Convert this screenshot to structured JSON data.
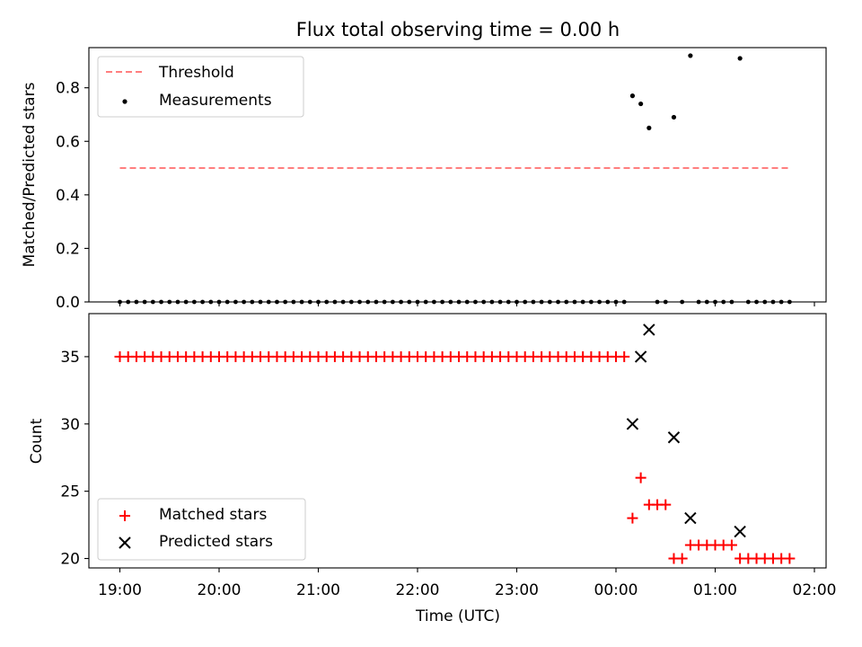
{
  "chart_data": [
    {
      "type": "scatter",
      "title": "Flux total observing time = 0.00 h",
      "ylabel": "Matched/Predicted stars",
      "xlabel": "",
      "ylim": [
        0,
        0.95
      ],
      "yticks": [
        0.0,
        0.2,
        0.4,
        0.6,
        0.8
      ],
      "ytick_labels": [
        "0.0",
        "0.2",
        "0.4",
        "0.6",
        "0.8"
      ],
      "grid": false,
      "legend_position": "top-left",
      "threshold": {
        "name": "Threshold",
        "value": 0.5,
        "x_start": "19:00",
        "x_end": "01:45",
        "color": "#ff7f7f",
        "style": "dashed"
      },
      "series": [
        {
          "name": "Measurements",
          "marker": "dot",
          "color": "#000000",
          "points": [
            {
              "x": "00:10",
              "y": 0.77
            },
            {
              "x": "00:15",
              "y": 0.74
            },
            {
              "x": "00:20",
              "y": 0.65
            },
            {
              "x": "00:35",
              "y": 0.69
            },
            {
              "x": "00:45",
              "y": 0.92
            },
            {
              "x": "01:15",
              "y": 0.91
            }
          ],
          "zero_points": [
            "19:00",
            "19:05",
            "19:10",
            "19:15",
            "19:20",
            "19:25",
            "19:30",
            "19:35",
            "19:40",
            "19:45",
            "19:50",
            "19:55",
            "20:00",
            "20:05",
            "20:10",
            "20:15",
            "20:20",
            "20:25",
            "20:30",
            "20:35",
            "20:40",
            "20:45",
            "20:50",
            "20:55",
            "21:00",
            "21:05",
            "21:10",
            "21:15",
            "21:20",
            "21:25",
            "21:30",
            "21:35",
            "21:40",
            "21:45",
            "21:50",
            "21:55",
            "22:00",
            "22:05",
            "22:10",
            "22:15",
            "22:20",
            "22:25",
            "22:30",
            "22:35",
            "22:40",
            "22:45",
            "22:50",
            "22:55",
            "23:00",
            "23:05",
            "23:10",
            "23:15",
            "23:20",
            "23:25",
            "23:30",
            "23:35",
            "23:40",
            "23:45",
            "23:50",
            "23:55",
            "00:00",
            "00:05",
            "00:25",
            "00:30",
            "00:40",
            "00:50",
            "00:55",
            "01:00",
            "01:05",
            "01:10",
            "01:20",
            "01:25",
            "01:30",
            "01:35",
            "01:40",
            "01:45"
          ]
        }
      ]
    },
    {
      "type": "scatter",
      "title": "",
      "xlabel": "Time (UTC)",
      "ylabel": "Count",
      "ylim": [
        19.3,
        38.2
      ],
      "yticks": [
        20,
        25,
        30,
        35
      ],
      "ytick_labels": [
        "20",
        "25",
        "30",
        "35"
      ],
      "x_tick_labels": [
        "19:00",
        "20:00",
        "21:00",
        "22:00",
        "23:00",
        "00:00",
        "01:00",
        "02:00"
      ],
      "x_tick_minutes": [
        0,
        60,
        120,
        180,
        240,
        300,
        360,
        420
      ],
      "grid": false,
      "legend_position": "bottom-left",
      "series": [
        {
          "name": "Matched stars",
          "marker": "plus",
          "color": "#ff0000",
          "runs": [
            {
              "from": "19:00",
              "to": "00:05",
              "y": 35
            }
          ],
          "points": [
            {
              "x": "00:10",
              "y": 23
            },
            {
              "x": "00:15",
              "y": 26
            },
            {
              "x": "00:20",
              "y": 24
            },
            {
              "x": "00:25",
              "y": 24
            },
            {
              "x": "00:30",
              "y": 24
            },
            {
              "x": "00:35",
              "y": 20
            },
            {
              "x": "00:40",
              "y": 20
            },
            {
              "x": "00:45",
              "y": 21
            },
            {
              "x": "00:50",
              "y": 21
            },
            {
              "x": "00:55",
              "y": 21
            },
            {
              "x": "01:00",
              "y": 21
            },
            {
              "x": "01:05",
              "y": 21
            },
            {
              "x": "01:10",
              "y": 21
            },
            {
              "x": "01:15",
              "y": 20
            },
            {
              "x": "01:20",
              "y": 20
            },
            {
              "x": "01:25",
              "y": 20
            },
            {
              "x": "01:30",
              "y": 20
            },
            {
              "x": "01:35",
              "y": 20
            },
            {
              "x": "01:40",
              "y": 20
            },
            {
              "x": "01:45",
              "y": 20
            }
          ]
        },
        {
          "name": "Predicted stars",
          "marker": "x",
          "color": "#000000",
          "points": [
            {
              "x": "00:10",
              "y": 30
            },
            {
              "x": "00:15",
              "y": 35
            },
            {
              "x": "00:20",
              "y": 37
            },
            {
              "x": "00:35",
              "y": 29
            },
            {
              "x": "00:45",
              "y": 23
            },
            {
              "x": "01:15",
              "y": 22
            }
          ]
        }
      ]
    }
  ]
}
